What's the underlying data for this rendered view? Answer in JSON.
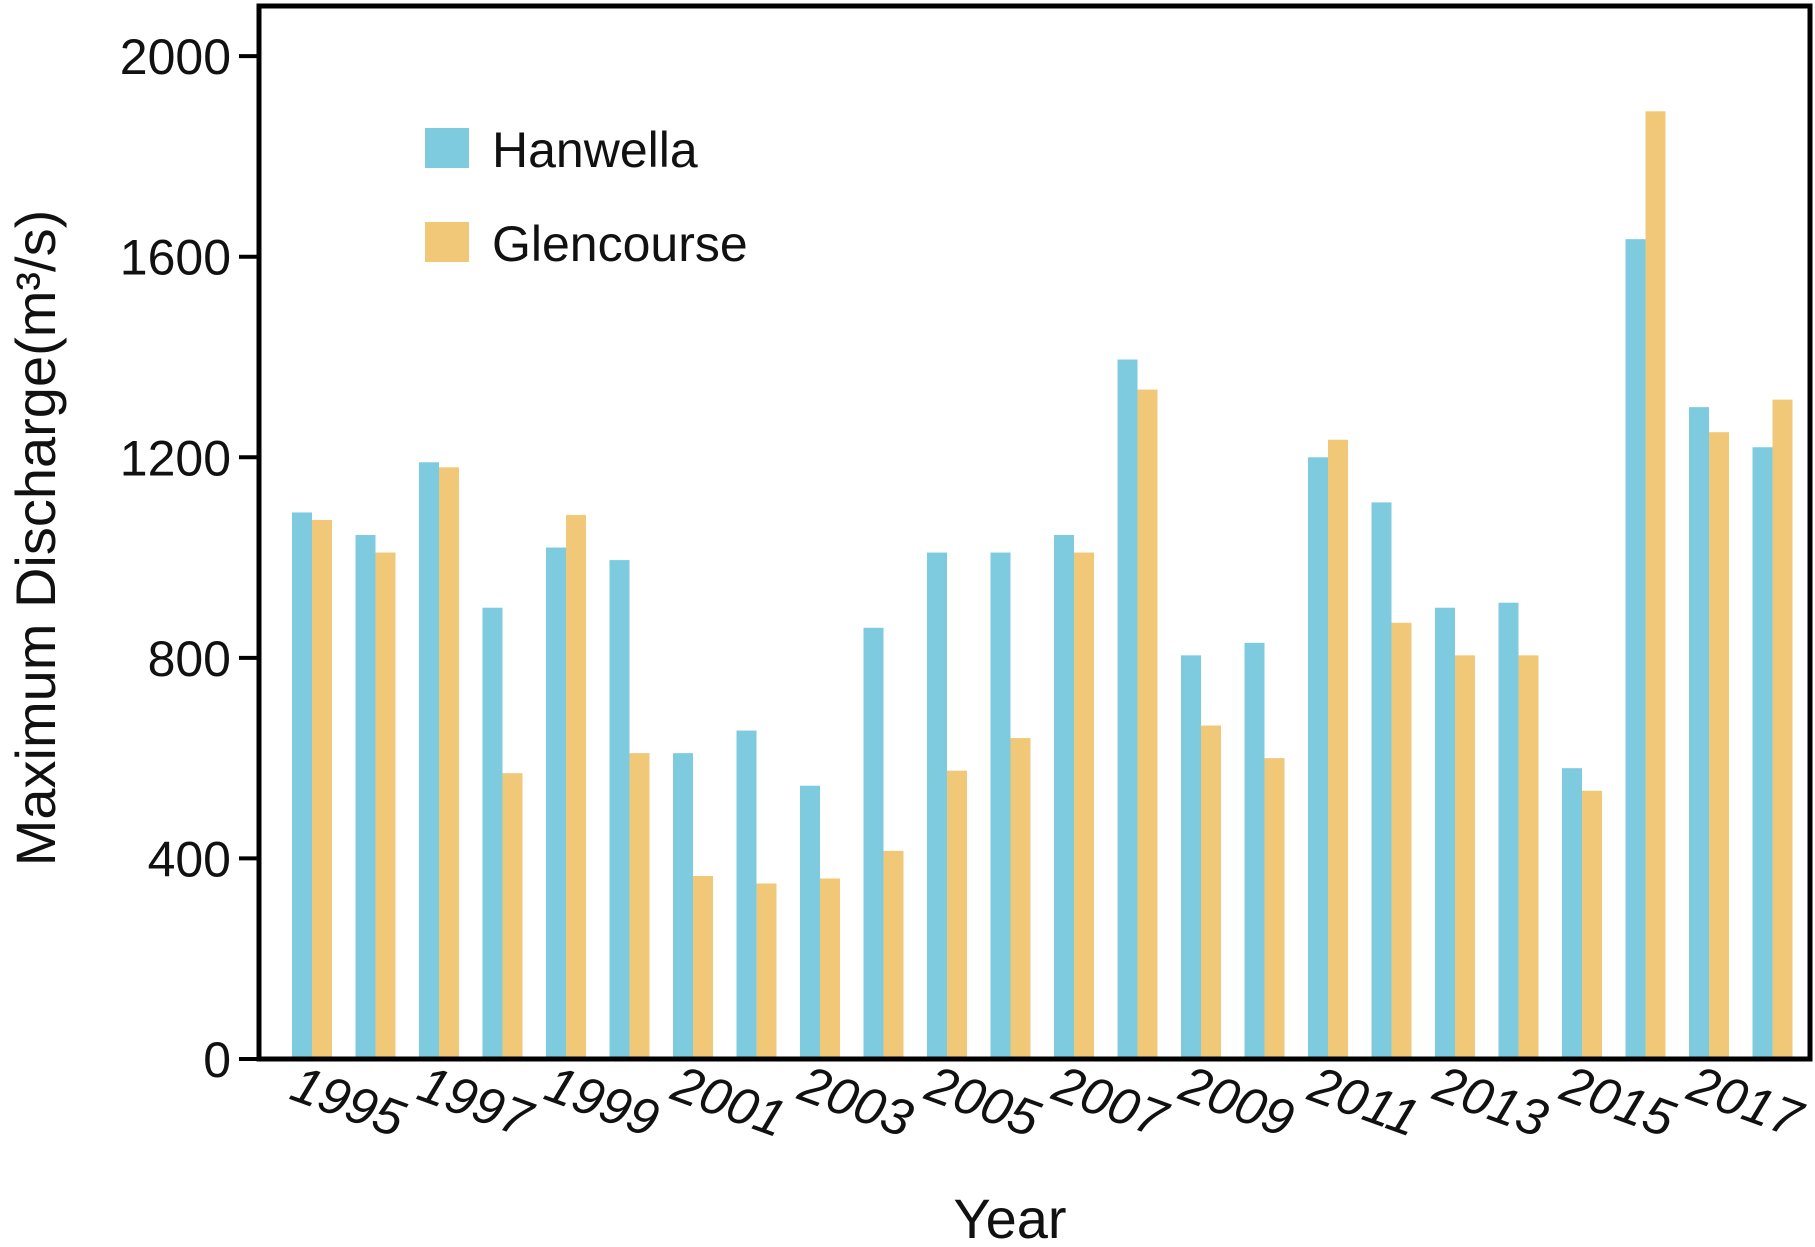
{
  "chart_data": {
    "type": "bar",
    "title": "",
    "xlabel": "Year",
    "ylabel": "Maximum Discharge(m³/s)",
    "ylim": [
      0,
      2100
    ],
    "yticks": [
      0,
      400,
      800,
      1200,
      1600,
      2000
    ],
    "legend_position": "top-left",
    "grid": false,
    "categories": [
      "1995",
      "1996",
      "1997",
      "1998",
      "1999",
      "2000",
      "2001",
      "2002",
      "2003",
      "2004",
      "2005",
      "2006",
      "2007",
      "2008",
      "2009",
      "2010",
      "2011",
      "2012",
      "2013",
      "2014",
      "2015",
      "2016",
      "2017",
      "2018"
    ],
    "x_tick_labels": [
      "1995",
      "1997",
      "1999",
      "2001",
      "2003",
      "2005",
      "2007",
      "2009",
      "2011",
      "2013",
      "2015",
      "2017"
    ],
    "series": [
      {
        "name": "Hanwella",
        "color": "#7ecbdf",
        "values": [
          1090,
          1045,
          1190,
          900,
          1020,
          995,
          610,
          655,
          545,
          860,
          1010,
          1010,
          1045,
          1395,
          805,
          830,
          1200,
          1110,
          900,
          910,
          580,
          1635,
          1300,
          1220
        ]
      },
      {
        "name": "Glencourse",
        "color": "#f0c878",
        "values": [
          1075,
          1010,
          1180,
          570,
          1085,
          610,
          365,
          350,
          360,
          415,
          575,
          640,
          1010,
          1335,
          665,
          600,
          1235,
          870,
          805,
          805,
          535,
          1890,
          1250,
          1315
        ]
      }
    ]
  }
}
